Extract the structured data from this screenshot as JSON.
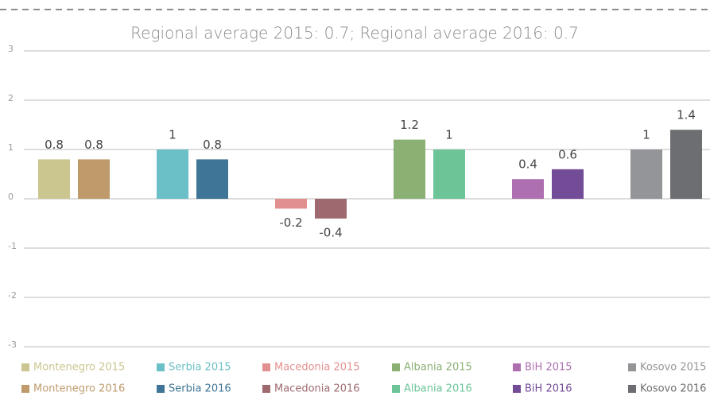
{
  "chart_data": {
    "type": "bar",
    "title": "Regional average 2015: 0.7; Regional average 2016: 0.7",
    "ylim": [
      -3,
      3
    ],
    "yticks": [
      -3,
      -2,
      -1,
      0,
      1,
      2,
      3
    ],
    "grid": true,
    "series": [
      {
        "name": "Montenegro 2015",
        "color": "#cbc68f",
        "values": [
          0.8
        ]
      },
      {
        "name": "Montenegro 2016",
        "color": "#bf9b6c",
        "values": [
          0.8
        ]
      },
      {
        "name": "Serbia 2015",
        "color": "#6bbfc6",
        "values": [
          1
        ]
      },
      {
        "name": "Serbia 2016",
        "color": "#3f7596",
        "values": [
          0.8
        ]
      },
      {
        "name": "Macedonia 2015",
        "color": "#e2908f",
        "values": [
          -0.2
        ]
      },
      {
        "name": "Macedonia 2016",
        "color": "#9e6a6f",
        "values": [
          -0.4
        ]
      },
      {
        "name": "Albania 2015",
        "color": "#8bb074",
        "values": [
          1.2
        ]
      },
      {
        "name": "Albania 2016",
        "color": "#6cc497",
        "values": [
          1
        ]
      },
      {
        "name": "BiH 2015",
        "color": "#ad6fb0",
        "values": [
          0.4
        ]
      },
      {
        "name": "BiH 2016",
        "color": "#734c98",
        "values": [
          0.6
        ]
      },
      {
        "name": "Kosovo 2015",
        "color": "#939598",
        "values": [
          1
        ]
      },
      {
        "name": "Kosovo 2016",
        "color": "#6d6e71",
        "values": [
          1.4
        ]
      }
    ]
  }
}
